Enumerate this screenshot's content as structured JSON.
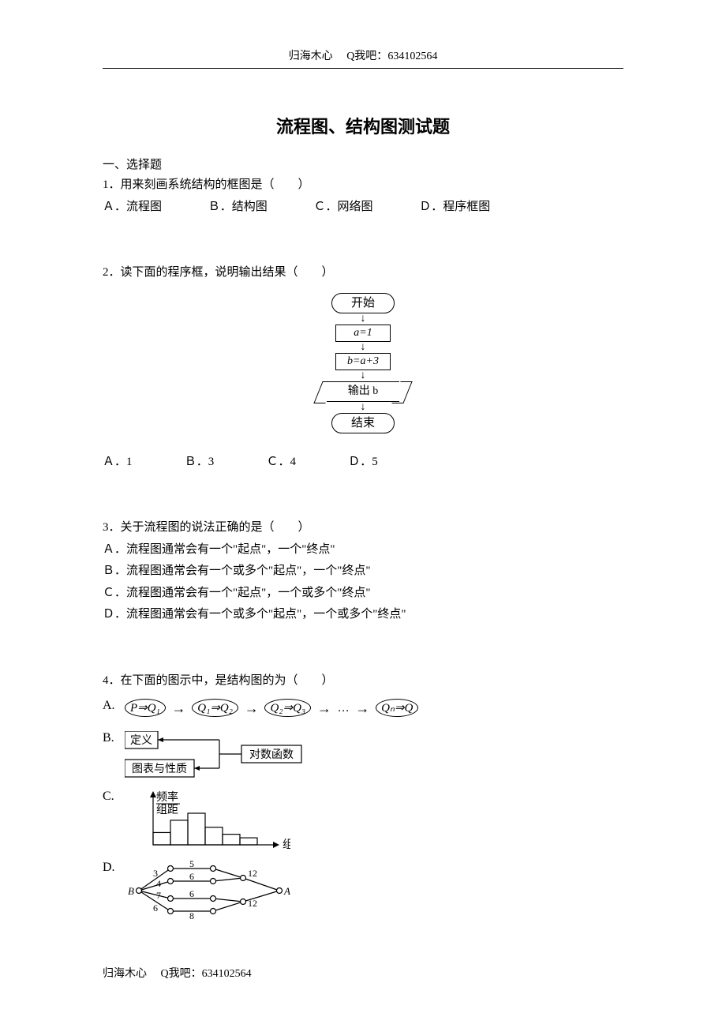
{
  "header": {
    "author": "归海木心",
    "contact_label": "Q我吧：",
    "contact": "634102564"
  },
  "title": "流程图、结构图测试题",
  "section1": "一、选择题",
  "q1": {
    "text": "1．用来刻画系统结构的框图是（　　）",
    "a": "Ａ．流程图",
    "b": "Ｂ．结构图",
    "c": "Ｃ．网络图",
    "d": "Ｄ．程序框图"
  },
  "q2": {
    "text": "2．读下面的程序框，说明输出结果（　　）",
    "flowchart": {
      "start": "开始",
      "step1": "a=1",
      "step2": "b=a+3",
      "output_label": "输出 b",
      "end": "结束"
    },
    "a": "Ａ．1",
    "b": "Ｂ．3",
    "c": "Ｃ．4",
    "d": "Ｄ．5"
  },
  "q3": {
    "text": "3．关于流程图的说法正确的是（　　）",
    "a": "Ａ．流程图通常会有一个\"起点\"，一个\"终点\"",
    "b": "Ｂ．流程图通常会有一个或多个\"起点\"，一个\"终点\"",
    "c": "Ｃ．流程图通常会有一个\"起点\"，一个或多个\"终点\"",
    "d": "Ｄ．流程图通常会有一个或多个\"起点\"，一个或多个\"终点\""
  },
  "q4": {
    "text": "4．在下面的图示中，是结构图的为（　　）",
    "optA": {
      "n1": "P⇒Q₁",
      "n2": "Q₁⇒Q₂",
      "n3": "Q₂⇒Q₃",
      "n4": "Qₙ⇒Q",
      "dots": "…"
    },
    "optB": {
      "b1": "定义",
      "b2": "图表与性质",
      "b3": "对数函数"
    },
    "optC": {
      "ylabel_top": "频率",
      "ylabel_bot": "组距",
      "xlabel": "组距",
      "bars": [
        14,
        28,
        36,
        20,
        12,
        8
      ]
    },
    "optD": {
      "vB": "B",
      "vA": "A",
      "e": [
        "3",
        "4",
        "5",
        "6",
        "6",
        "6",
        "7",
        "8",
        "12",
        "12"
      ]
    },
    "lA": "A.",
    "lB": "B.",
    "lC": "C.",
    "lD": "D."
  },
  "footer": {
    "author": "归海木心",
    "contact_label": "Q我吧：",
    "contact": "634102564"
  }
}
